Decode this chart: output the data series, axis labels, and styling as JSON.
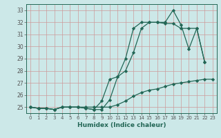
{
  "xlabel": "Humidex (Indice chaleur)",
  "x": [
    0,
    1,
    2,
    3,
    4,
    5,
    6,
    7,
    8,
    9,
    10,
    11,
    12,
    13,
    14,
    15,
    16,
    17,
    18,
    19,
    20,
    21,
    22,
    23
  ],
  "line1": [
    25.0,
    24.9,
    24.9,
    24.8,
    25.0,
    25.0,
    25.0,
    24.9,
    24.8,
    24.8,
    25.6,
    27.5,
    28.0,
    29.5,
    31.5,
    32.0,
    32.0,
    32.0,
    33.0,
    31.8,
    29.8,
    31.5,
    28.7,
    null
  ],
  "line2": [
    25.0,
    24.9,
    24.9,
    24.8,
    25.0,
    25.0,
    25.0,
    24.9,
    24.8,
    25.5,
    27.3,
    27.5,
    29.0,
    31.5,
    32.0,
    32.0,
    32.0,
    31.9,
    31.9,
    31.5,
    31.5,
    31.5,
    28.7,
    null
  ],
  "line3": [
    25.0,
    24.9,
    24.9,
    24.8,
    25.0,
    25.0,
    25.0,
    25.0,
    25.0,
    25.0,
    25.0,
    25.2,
    25.5,
    25.9,
    26.2,
    26.4,
    26.5,
    26.7,
    26.9,
    27.0,
    27.1,
    27.2,
    27.3,
    27.3
  ],
  "ylim": [
    24.5,
    33.5
  ],
  "yticks": [
    25,
    26,
    27,
    28,
    29,
    30,
    31,
    32,
    33
  ],
  "xlim": [
    -0.5,
    23.5
  ],
  "bg_color": "#cce8e8",
  "grid_color": "#cc9999",
  "line_color": "#226655",
  "marker": "D",
  "markersize": 2.2,
  "linewidth": 0.9
}
